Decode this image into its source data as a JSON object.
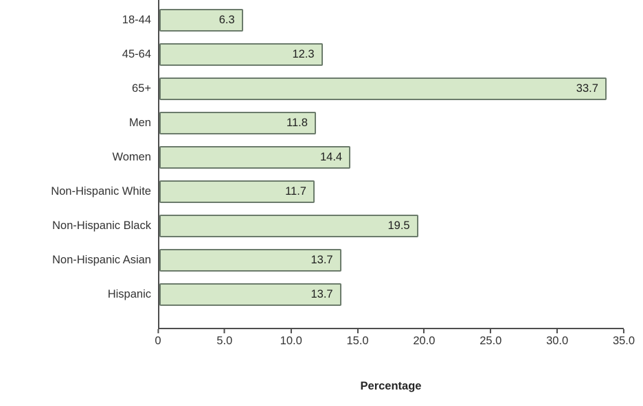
{
  "chart_data": {
    "type": "bar",
    "orientation": "horizontal",
    "categories": [
      "18-44",
      "45-64",
      "65+",
      "Men",
      "Women",
      "Non-Hispanic White",
      "Non-Hispanic Black",
      "Non-Hispanic Asian",
      "Hispanic"
    ],
    "values": [
      6.3,
      12.3,
      33.7,
      11.8,
      14.4,
      11.7,
      19.5,
      13.7,
      13.7
    ],
    "value_labels": [
      "6.3",
      "12.3",
      "33.7",
      "11.8",
      "14.4",
      "11.7",
      "19.5",
      "13.7",
      "13.7"
    ],
    "title": "",
    "xlabel": "Percentage",
    "ylabel": "",
    "xlim": [
      0,
      35
    ],
    "x_ticks": [
      {
        "value": 0,
        "label": "0"
      },
      {
        "value": 5,
        "label": "5.0"
      },
      {
        "value": 10,
        "label": "10.0"
      },
      {
        "value": 15,
        "label": "15.0"
      },
      {
        "value": 20,
        "label": "20.0"
      },
      {
        "value": 25,
        "label": "25.0"
      },
      {
        "value": 30,
        "label": "30.0"
      },
      {
        "value": 35,
        "label": "35.0"
      }
    ],
    "grid": false,
    "legend": "none",
    "colors": {
      "bar_fill": "#d6e8c9",
      "bar_border": "#6b7b6b",
      "axis": "#4d4d4d",
      "text": "#333333"
    }
  }
}
